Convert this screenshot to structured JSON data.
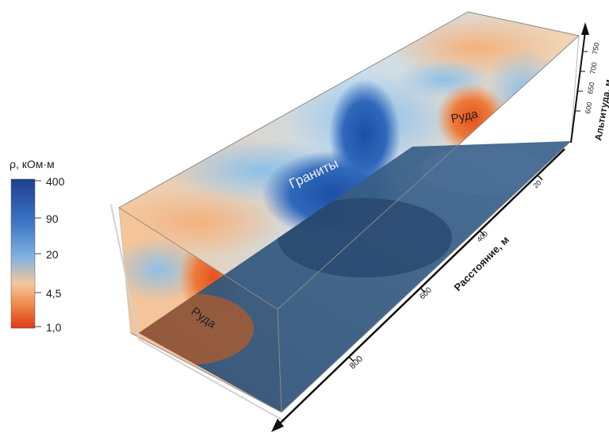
{
  "legend": {
    "title": "ρ, кОм·м",
    "ticks": [
      "400",
      "90",
      "20",
      "4,5",
      "1,0"
    ],
    "stops": [
      "#1f3f8f",
      "#3a73c4",
      "#7fb2e0",
      "#f3c79d",
      "#ef8a4a",
      "#dd3a17"
    ]
  },
  "labels": {
    "granites": "Граниты",
    "ore_top": "Руда",
    "ore_front": "Руда"
  },
  "axes": {
    "altitude_title": "Альтитуда, м",
    "altitude_ticks": [
      "600",
      "650",
      "700",
      "750"
    ],
    "distance_title": "Расстояние, м",
    "distance_ticks": [
      "20",
      "400",
      "600",
      "800"
    ]
  }
}
